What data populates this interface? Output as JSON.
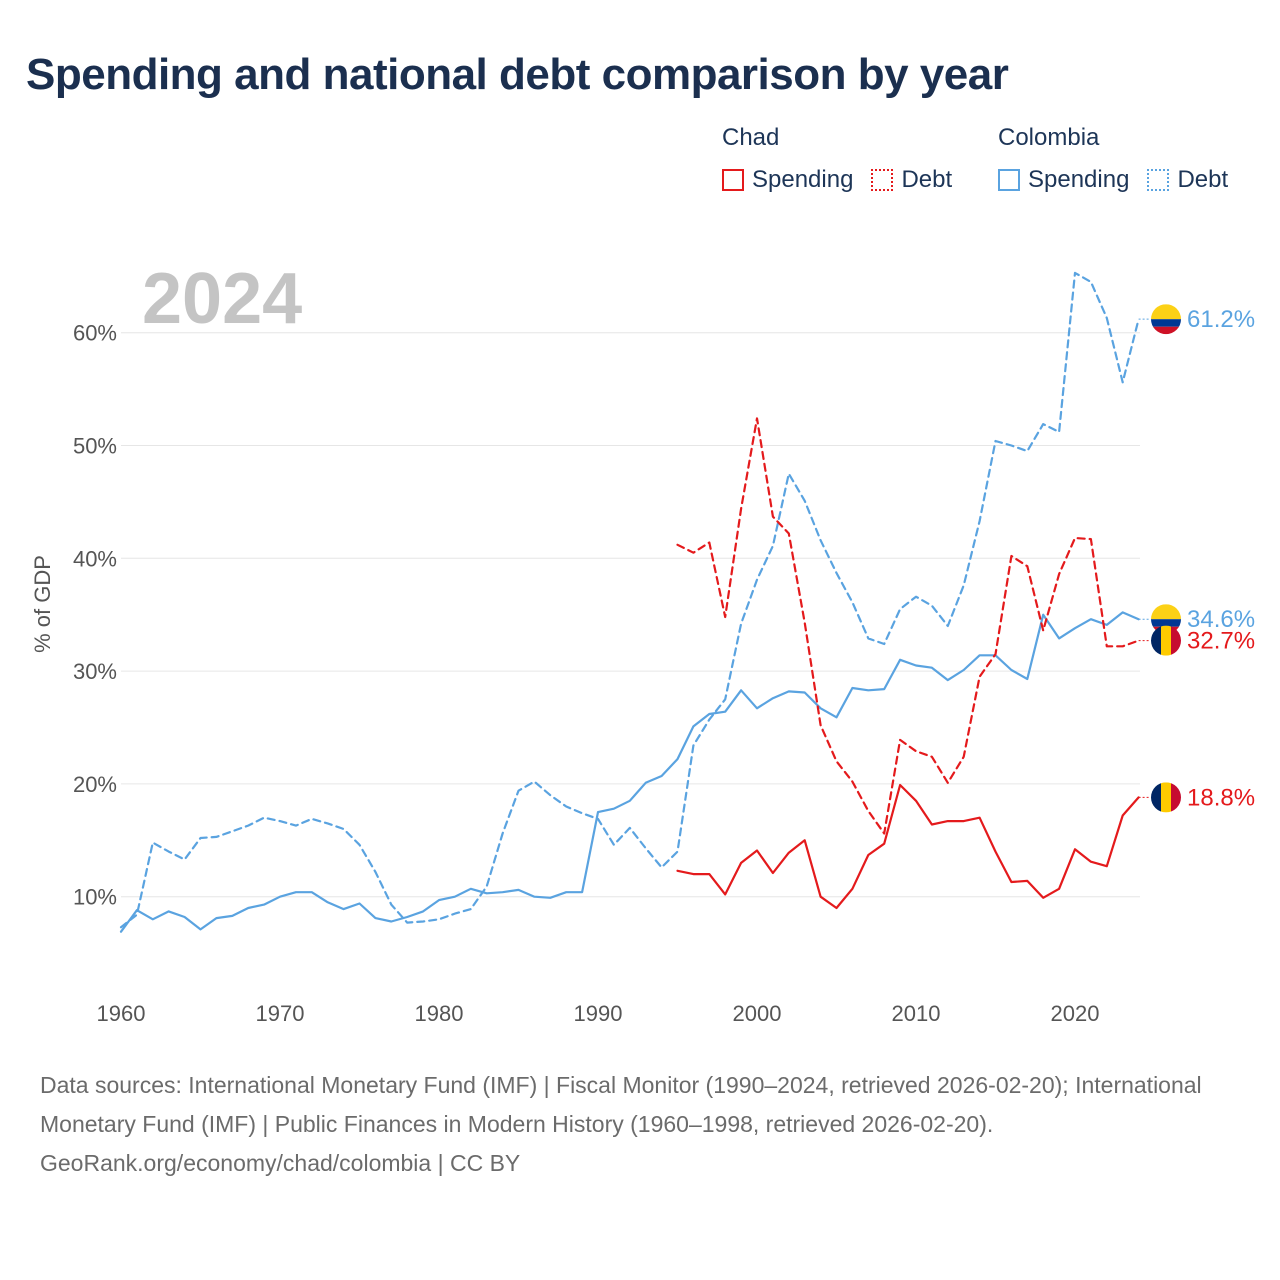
{
  "title": "Spending and national debt comparison by year",
  "legend": {
    "groups": [
      {
        "country": "Chad",
        "items": [
          {
            "label": "Spending",
            "style": "solid"
          },
          {
            "label": "Debt",
            "style": "dotted"
          }
        ],
        "color": "#e41a1c"
      },
      {
        "country": "Colombia",
        "items": [
          {
            "label": "Spending",
            "style": "solid"
          },
          {
            "label": "Debt",
            "style": "dotted"
          }
        ],
        "color": "#5aa3e0"
      }
    ]
  },
  "colors": {
    "chad": "#e41a1c",
    "colombia": "#5aa3e0",
    "grid": "#e6e6e6",
    "year_label": "#c4c4c4"
  },
  "footer": {
    "sources": "Data sources: International Monetary Fund (IMF) | Fiscal Monitor (1990–2024, retrieved 2026-02-20); International Monetary Fund (IMF) | Public Finances in Modern History (1960–1998, retrieved 2026-02-20).",
    "credit": "GeoRank.org/economy/chad/colombia | CC BY"
  },
  "chart_data": {
    "type": "line",
    "year_label": "2024",
    "ylabel": "% of GDP",
    "xlabel": "",
    "xlim": [
      1960,
      2024
    ],
    "ylim": [
      3,
      67
    ],
    "x_ticks": [
      1960,
      1970,
      1980,
      1990,
      2000,
      2010,
      2020
    ],
    "y_ticks": [
      {
        "value": 10,
        "label": "10%"
      },
      {
        "value": 20,
        "label": "20%"
      },
      {
        "value": 30,
        "label": "30%"
      },
      {
        "value": 40,
        "label": "40%"
      },
      {
        "value": 50,
        "label": "50%"
      },
      {
        "value": 60,
        "label": "60%"
      }
    ],
    "series": [
      {
        "name": "Colombia Debt",
        "country": "colombia",
        "dashed": true,
        "x": [
          1960,
          1961,
          1962,
          1963,
          1964,
          1965,
          1966,
          1967,
          1968,
          1969,
          1970,
          1971,
          1972,
          1973,
          1974,
          1975,
          1976,
          1977,
          1978,
          1979,
          1980,
          1981,
          1982,
          1983,
          1984,
          1985,
          1986,
          1987,
          1988,
          1989,
          1990,
          1991,
          1992,
          1993,
          1994,
          1995,
          1996,
          1997,
          1998,
          1999,
          2000,
          2001,
          2002,
          2003,
          2004,
          2005,
          2006,
          2007,
          2008,
          2009,
          2010,
          2011,
          2012,
          2013,
          2014,
          2015,
          2016,
          2017,
          2018,
          2019,
          2020,
          2021,
          2022,
          2023,
          2024
        ],
        "values": [
          7.3,
          8.4,
          14.8,
          14.0,
          13.3,
          15.2,
          15.3,
          15.8,
          16.3,
          17.0,
          16.7,
          16.3,
          16.9,
          16.5,
          16.0,
          14.6,
          12.2,
          9.3,
          7.7,
          7.8,
          8.0,
          8.5,
          8.9,
          10.9,
          15.6,
          19.4,
          20.2,
          19.0,
          18.0,
          17.4,
          16.9,
          14.6,
          16.1,
          14.3,
          12.6,
          14.0,
          23.4,
          25.7,
          27.5,
          34.2,
          38.1,
          41.1,
          47.5,
          45.1,
          41.6,
          38.7,
          36.1,
          32.9,
          32.4,
          35.5,
          36.6,
          35.8,
          34.0,
          37.6,
          43.3,
          50.4,
          50.0,
          49.5,
          51.9,
          51.2,
          65.3,
          64.5,
          61.3,
          55.6,
          61.2
        ],
        "end_label": "61.2%"
      },
      {
        "name": "Colombia Spending",
        "country": "colombia",
        "dashed": false,
        "x": [
          1960,
          1961,
          1962,
          1963,
          1964,
          1965,
          1966,
          1967,
          1968,
          1969,
          1970,
          1971,
          1972,
          1973,
          1974,
          1975,
          1976,
          1977,
          1978,
          1979,
          1980,
          1981,
          1982,
          1983,
          1984,
          1985,
          1986,
          1987,
          1988,
          1989,
          1990,
          1991,
          1992,
          1993,
          1994,
          1995,
          1996,
          1997,
          1998,
          1999,
          2000,
          2001,
          2002,
          2003,
          2004,
          2005,
          2006,
          2007,
          2008,
          2009,
          2010,
          2011,
          2012,
          2013,
          2014,
          2015,
          2016,
          2017,
          2018,
          2019,
          2020,
          2021,
          2022,
          2023,
          2024
        ],
        "values": [
          6.9,
          8.8,
          8.0,
          8.7,
          8.2,
          7.1,
          8.1,
          8.3,
          9.0,
          9.3,
          10.0,
          10.4,
          10.4,
          9.5,
          8.9,
          9.4,
          8.1,
          7.8,
          8.2,
          8.7,
          9.7,
          10.0,
          10.7,
          10.3,
          10.4,
          10.6,
          10.0,
          9.9,
          10.4,
          10.4,
          17.5,
          17.8,
          18.5,
          20.1,
          20.7,
          22.2,
          25.1,
          26.2,
          26.4,
          28.3,
          26.7,
          27.6,
          28.2,
          28.1,
          26.7,
          25.9,
          28.5,
          28.3,
          28.4,
          31.0,
          30.5,
          30.3,
          29.2,
          30.1,
          31.4,
          31.4,
          30.1,
          29.3,
          35.0,
          32.9,
          33.8,
          34.6,
          34.1,
          35.2,
          34.6
        ],
        "end_label": "34.6%"
      },
      {
        "name": "Chad Debt",
        "country": "chad",
        "dashed": true,
        "x": [
          1995,
          1996,
          1997,
          1998,
          1999,
          2000,
          2001,
          2002,
          2003,
          2004,
          2005,
          2006,
          2007,
          2008,
          2009,
          2010,
          2011,
          2012,
          2013,
          2014,
          2015,
          2016,
          2017,
          2018,
          2019,
          2020,
          2021,
          2022,
          2023,
          2024
        ],
        "values": [
          41.2,
          40.5,
          41.4,
          34.8,
          44.4,
          52.4,
          43.7,
          42.2,
          34.3,
          25.2,
          22.0,
          20.2,
          17.6,
          15.6,
          23.9,
          22.9,
          22.4,
          20.1,
          22.4,
          29.5,
          31.5,
          40.2,
          39.3,
          33.6,
          38.6,
          41.8,
          41.7,
          32.2,
          32.2,
          32.7
        ],
        "end_label": "32.7%"
      },
      {
        "name": "Chad Spending",
        "country": "chad",
        "dashed": false,
        "x": [
          1995,
          1996,
          1997,
          1998,
          1999,
          2000,
          2001,
          2002,
          2003,
          2004,
          2005,
          2006,
          2007,
          2008,
          2009,
          2010,
          2011,
          2012,
          2013,
          2014,
          2015,
          2016,
          2017,
          2018,
          2019,
          2020,
          2021,
          2022,
          2023,
          2024
        ],
        "values": [
          12.3,
          12.0,
          12.0,
          10.2,
          13.0,
          14.1,
          12.1,
          13.9,
          15.0,
          10.0,
          9.0,
          10.7,
          13.7,
          14.7,
          19.9,
          18.5,
          16.4,
          16.7,
          16.7,
          17.0,
          14.0,
          11.3,
          11.4,
          9.9,
          10.7,
          14.2,
          13.1,
          12.7,
          17.2,
          18.8
        ],
        "end_label": "18.8%"
      }
    ]
  }
}
